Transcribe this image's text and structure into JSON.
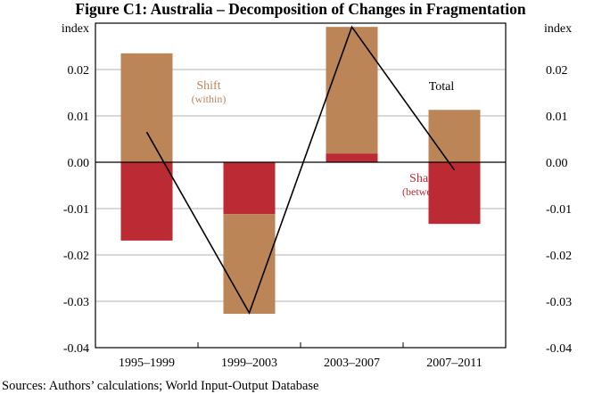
{
  "chart_data": {
    "type": "bar",
    "stacked": true,
    "title": "Figure C1: Australia – Decomposition of Changes in Fragmentation",
    "ylabel_left": "index",
    "ylabel_right": "index",
    "ylim": [
      -0.04,
      0.03
    ],
    "yticks": [
      -0.04,
      -0.03,
      -0.02,
      -0.01,
      0.0,
      0.01,
      0.02
    ],
    "ytick_labels": [
      "-0.04",
      "-0.03",
      "-0.02",
      "-0.01",
      "0.00",
      "0.01",
      "0.02"
    ],
    "grid": true,
    "categories": [
      "1995–1999",
      "1999–2003",
      "2003–2007",
      "2007–2011"
    ],
    "series": [
      {
        "name": "Share",
        "sublabel": "(between)",
        "type": "bar",
        "color": "#bc2a33",
        "values": [
          -0.0169,
          -0.0112,
          0.0019,
          -0.0133
        ]
      },
      {
        "name": "Shift",
        "sublabel": "(within)",
        "type": "bar",
        "color": "#bc8558",
        "values": [
          0.0235,
          -0.0215,
          0.0273,
          0.0113
        ]
      },
      {
        "name": "Total",
        "type": "line",
        "color": "#000000",
        "values": [
          0.0065,
          -0.0325,
          0.0292,
          -0.0017
        ]
      }
    ],
    "source": "Sources:  Authors’ calculations; World Input-Output Database"
  }
}
